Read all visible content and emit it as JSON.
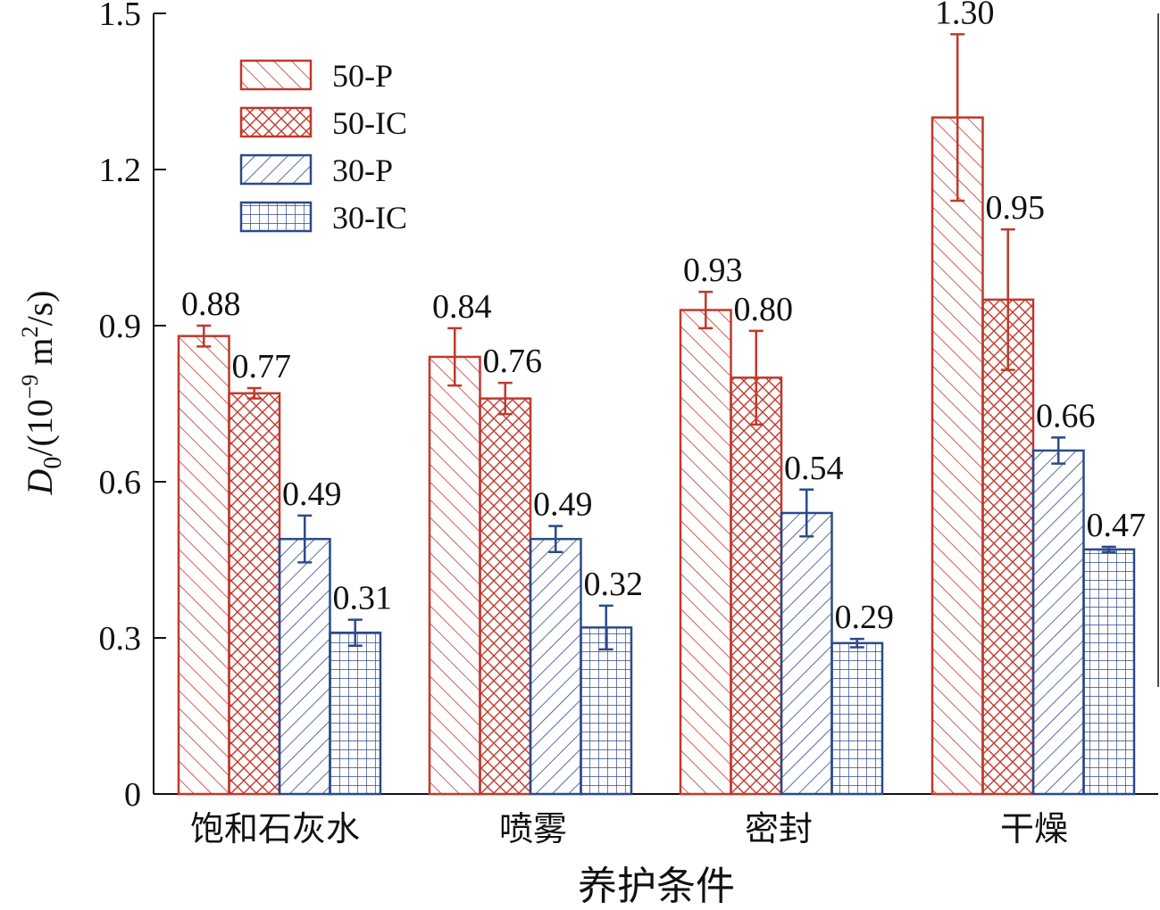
{
  "chart_data": {
    "type": "bar",
    "categories": [
      "饱和石灰水",
      "喷雾",
      "密封",
      "干燥"
    ],
    "series": [
      {
        "name": "50-P",
        "color": "#c0392b",
        "pattern": "diag-right",
        "values": [
          0.88,
          0.84,
          0.93,
          1.3
        ],
        "errors": [
          0.02,
          0.055,
          0.035,
          0.16
        ],
        "labels": [
          "0.88",
          "0.84",
          "0.93",
          "1.30"
        ]
      },
      {
        "name": "50-IC",
        "color": "#c0392b",
        "pattern": "crosshatch",
        "values": [
          0.77,
          0.76,
          0.8,
          0.95
        ],
        "errors": [
          0.01,
          0.03,
          0.09,
          0.135
        ],
        "labels": [
          "0.77",
          "0.76",
          "0.80",
          "0.95"
        ]
      },
      {
        "name": "30-P",
        "color": "#2c4a8a",
        "pattern": "diag-left",
        "values": [
          0.49,
          0.49,
          0.54,
          0.66
        ],
        "errors": [
          0.045,
          0.025,
          0.045,
          0.025
        ],
        "labels": [
          "0.49",
          "0.49",
          "0.54",
          "0.66"
        ]
      },
      {
        "name": "30-IC",
        "color": "#2c4a8a",
        "pattern": "grid",
        "values": [
          0.31,
          0.32,
          0.29,
          0.47
        ],
        "errors": [
          0.025,
          0.042,
          0.008,
          0.005
        ],
        "labels": [
          "0.31",
          "0.32",
          "0.29",
          "0.47"
        ]
      }
    ],
    "ylim": [
      0,
      1.5
    ],
    "yticks": [
      "0",
      "0.3",
      "0.6",
      "0.9",
      "1.2",
      "1.5"
    ],
    "ytick_values": [
      0,
      0.3,
      0.6,
      0.9,
      1.2,
      1.5
    ],
    "xlabel": "养护条件",
    "ylabel": {
      "main": "D",
      "sub": "0",
      "rest1": "/(10",
      "sup1": "−9",
      "rest2": " m",
      "sup2": "2",
      "rest3": "/s)"
    },
    "legend_position": "top-left",
    "grid": false
  }
}
